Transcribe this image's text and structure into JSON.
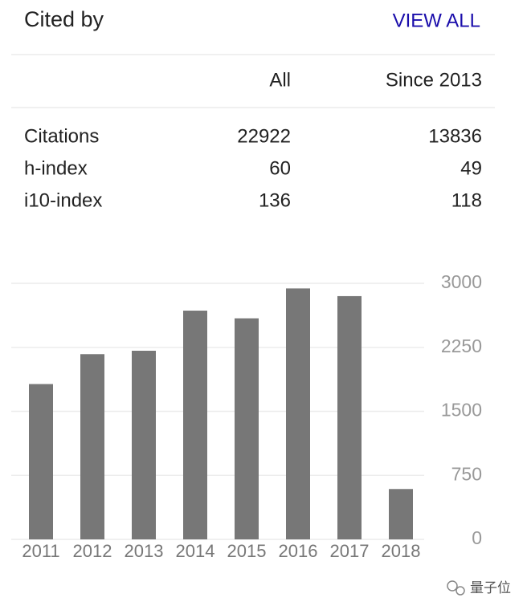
{
  "header": {
    "title": "Cited by",
    "link": "VIEW ALL"
  },
  "table": {
    "columns": [
      "All",
      "Since 2013"
    ],
    "rows": [
      [
        "Citations",
        22922,
        13836
      ],
      [
        "h-index",
        60,
        49
      ],
      [
        "i10-index",
        136,
        118
      ]
    ]
  },
  "chart_data": {
    "type": "bar",
    "categories": [
      "2011",
      "2012",
      "2013",
      "2014",
      "2015",
      "2016",
      "2017",
      "2018"
    ],
    "values": [
      1820,
      2170,
      2210,
      2680,
      2590,
      2940,
      2850,
      590
    ],
    "color": "#777777",
    "ylim": [
      0,
      3000
    ],
    "yticks": [
      0,
      750,
      1500,
      2250,
      3000
    ],
    "grid": true
  },
  "watermark": "量子位"
}
